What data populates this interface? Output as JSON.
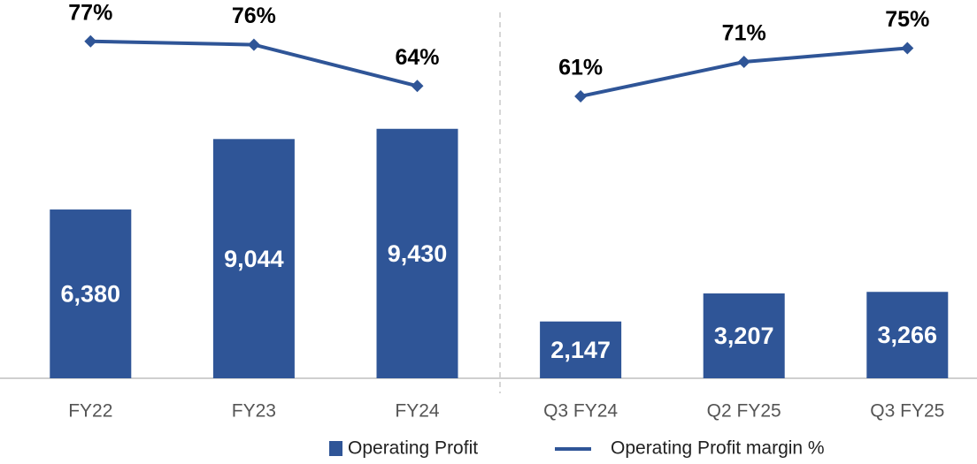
{
  "chart_data": [
    {
      "type": "bar",
      "categories": [
        "FY22",
        "FY23",
        "FY24"
      ],
      "series": [
        {
          "name": "Operating Profit",
          "type": "bar",
          "color": "#2f5597",
          "values": [
            6380,
            9044,
            9430
          ],
          "value_labels": [
            "6,380",
            "9,044",
            "9,430"
          ]
        },
        {
          "name": "Operating Profit margin %",
          "type": "line",
          "axis": "y2",
          "color": "#2f5597",
          "values": [
            77,
            76,
            64
          ],
          "value_labels": [
            "77%",
            "76%",
            "64%"
          ]
        }
      ],
      "ylim": [
        0,
        14300
      ],
      "y2lim": [
        -21,
        89
      ]
    },
    {
      "type": "bar",
      "categories": [
        "Q3 FY24",
        "Q2 FY25",
        "Q3 FY25"
      ],
      "series": [
        {
          "type": "bar",
          "color": "#2f5597",
          "values": [
            2147,
            3207,
            3266
          ],
          "value_labels": [
            "2,147",
            "3,207",
            "3,266"
          ]
        },
        {
          "type": "line",
          "axis": "y2",
          "color": "#2f5597",
          "values": [
            61,
            71,
            75
          ],
          "value_labels": [
            "61%",
            "71%",
            "75%"
          ]
        }
      ],
      "ylim": [
        0,
        14300
      ],
      "y2lim": [
        -21,
        89
      ]
    }
  ]
}
